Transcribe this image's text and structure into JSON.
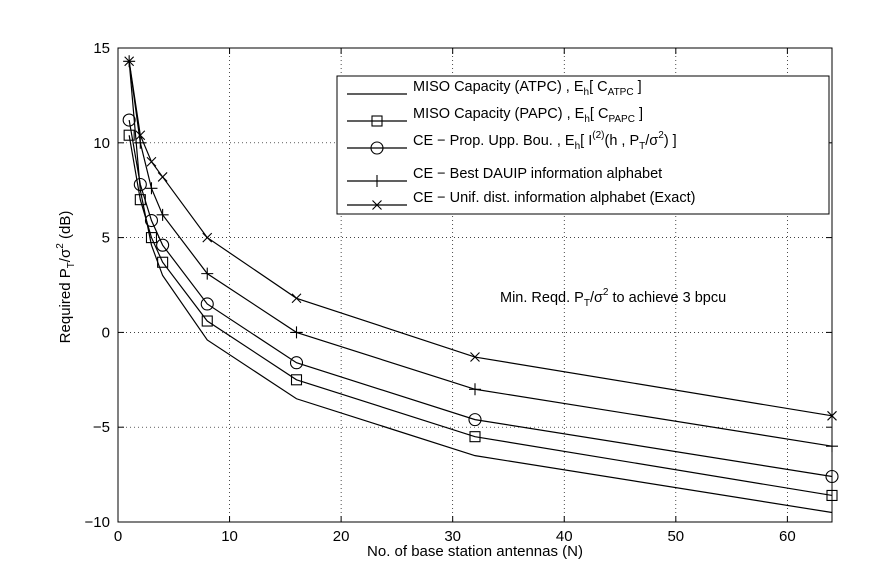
{
  "chart_data": {
    "type": "line",
    "xlabel": "No. of base station antennas (N)",
    "ylabel_main": "Required P",
    "ylabel_sub": "T",
    "ylabel_mid": "/σ",
    "ylabel_sup": "2",
    "ylabel_tail": " (dB)",
    "xlim": [
      0,
      64
    ],
    "ylim": [
      -10,
      15
    ],
    "xticks": [
      0,
      10,
      20,
      30,
      40,
      50,
      60
    ],
    "yticks": [
      -10,
      -5,
      0,
      5,
      10,
      15
    ],
    "xtick_labels": [
      "0",
      "10",
      "20",
      "30",
      "40",
      "50",
      "60"
    ],
    "ytick_labels": [
      "−10",
      "−5",
      "0",
      "5",
      "10",
      "15"
    ],
    "grid": true,
    "legend_position": "top-right",
    "annotation": {
      "pre": "Min. Reqd. P",
      "sub": "T",
      "mid": "/σ",
      "sup": "2",
      "post": " to achieve 3 bpcu",
      "x": 38,
      "y": 3.1
    },
    "series": [
      {
        "name": "MISO Capacity (ATPC)  ,  E_h[ C_ATPC ]",
        "marker": "none",
        "x": [
          1,
          2,
          3,
          4,
          8,
          16,
          32,
          64
        ],
        "y": [
          14.3,
          7.5,
          4.6,
          3.0,
          -0.4,
          -3.5,
          -6.5,
          -9.5
        ]
      },
      {
        "name": "MISO Capacity (PAPC)  ,  E_h[ C_PAPC ]",
        "marker": "square",
        "x": [
          1,
          2,
          3,
          4,
          8,
          16,
          32,
          64
        ],
        "y": [
          10.4,
          7.0,
          5.0,
          3.7,
          0.6,
          -2.5,
          -5.5,
          -8.6
        ]
      },
      {
        "name": "CE − Prop. Upp. Bou.  ,  E_h[ I^(2)(h , P_T/σ^2) ]",
        "marker": "circle",
        "x": [
          1,
          2,
          3,
          4,
          8,
          16,
          32,
          64
        ],
        "y": [
          11.2,
          7.8,
          5.9,
          4.6,
          1.5,
          -1.6,
          -4.6,
          -7.6
        ]
      },
      {
        "name": "CE − Best DAUIP information alphabet",
        "marker": "plus",
        "x": [
          1,
          2,
          3,
          4,
          8,
          16,
          32,
          64
        ],
        "y": [
          14.3,
          10.0,
          7.6,
          6.2,
          3.1,
          0.0,
          -3.0,
          -6.0
        ]
      },
      {
        "name": "CE − Unif. dist. information alphabet (Exact)",
        "marker": "x",
        "x": [
          1,
          2,
          3,
          4,
          8,
          16,
          32,
          64
        ],
        "y": [
          14.3,
          10.4,
          9.0,
          8.2,
          5.0,
          1.8,
          -1.3,
          -4.4
        ]
      }
    ],
    "legend": [
      {
        "main": "MISO Capacity (ATPC)  ,  E",
        "sub": "h",
        "rest": "[ C",
        "sub2": "ATPC",
        "end": " ]"
      },
      {
        "main": "MISO Capacity (PAPC)  ,  E",
        "sub": "h",
        "rest": "[ C",
        "sub2": "PAPC",
        "end": " ]"
      },
      {
        "main": "CE − Prop. Upp. Bou.  ,  E",
        "sub": "h",
        "rest": "[  I",
        "sup": "(2)",
        "rest2": "(h , P",
        "sub3": "T",
        "rest3": "/σ",
        "sup2": "2",
        "end": ") ]"
      },
      {
        "main": "CE − Best DAUIP information alphabet"
      },
      {
        "main": "CE − Unif. dist. information alphabet (Exact)"
      }
    ]
  }
}
